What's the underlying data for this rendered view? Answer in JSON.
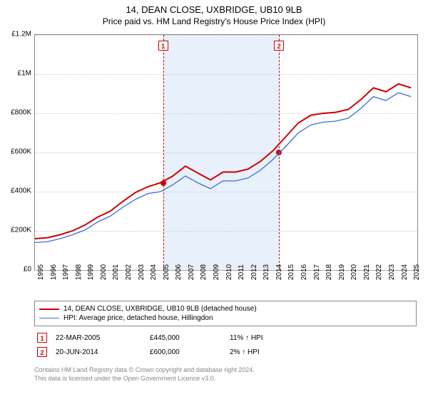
{
  "title": "14, DEAN CLOSE, UXBRIDGE, UB10 9LB",
  "subtitle": "Price paid vs. HM Land Registry's House Price Index (HPI)",
  "chart": {
    "type": "line",
    "x_min": 1995,
    "x_max": 2025.5,
    "y_min": 0,
    "y_max": 1200000,
    "y_ticks": [
      0,
      200000,
      400000,
      600000,
      800000,
      1000000,
      1200000
    ],
    "y_tick_labels": [
      "£0",
      "£200K",
      "£400K",
      "£600K",
      "£800K",
      "£1M",
      "£1.2M"
    ],
    "x_ticks": [
      1995,
      1996,
      1997,
      1998,
      1999,
      2000,
      2001,
      2002,
      2003,
      2004,
      2005,
      2006,
      2007,
      2008,
      2009,
      2010,
      2011,
      2012,
      2013,
      2014,
      2015,
      2016,
      2017,
      2018,
      2019,
      2020,
      2021,
      2022,
      2023,
      2024,
      2025
    ],
    "background_color": "#ffffff",
    "grid_color": "#cccccc",
    "shaded_band": {
      "x_start": 2005.22,
      "x_end": 2014.47,
      "color": "#e8f0fb"
    },
    "markers": [
      {
        "label": "1",
        "x": 2005.22,
        "point_y": 445000
      },
      {
        "label": "2",
        "x": 2014.47,
        "point_y": 600000
      }
    ],
    "series": [
      {
        "name": "property",
        "label": "14, DEAN CLOSE, UXBRIDGE, UB10 9LB (detached house)",
        "color": "#d00000",
        "width": 2,
        "points": [
          [
            1995,
            160000
          ],
          [
            1996,
            165000
          ],
          [
            1997,
            180000
          ],
          [
            1998,
            200000
          ],
          [
            1999,
            230000
          ],
          [
            2000,
            270000
          ],
          [
            2001,
            300000
          ],
          [
            2002,
            350000
          ],
          [
            2003,
            395000
          ],
          [
            2004,
            425000
          ],
          [
            2005,
            445000
          ],
          [
            2006,
            480000
          ],
          [
            2007,
            530000
          ],
          [
            2008,
            495000
          ],
          [
            2009,
            460000
          ],
          [
            2010,
            500000
          ],
          [
            2011,
            500000
          ],
          [
            2012,
            515000
          ],
          [
            2013,
            555000
          ],
          [
            2014,
            610000
          ],
          [
            2015,
            680000
          ],
          [
            2016,
            750000
          ],
          [
            2017,
            790000
          ],
          [
            2018,
            800000
          ],
          [
            2019,
            805000
          ],
          [
            2020,
            820000
          ],
          [
            2021,
            870000
          ],
          [
            2022,
            930000
          ],
          [
            2023,
            910000
          ],
          [
            2024,
            950000
          ],
          [
            2025,
            930000
          ]
        ]
      },
      {
        "name": "hpi",
        "label": "HPI: Average price, detached house, Hillingdon",
        "color": "#3a6fd8",
        "width": 1.3,
        "points": [
          [
            1995,
            140000
          ],
          [
            1996,
            145000
          ],
          [
            1997,
            160000
          ],
          [
            1998,
            180000
          ],
          [
            1999,
            205000
          ],
          [
            2000,
            245000
          ],
          [
            2001,
            275000
          ],
          [
            2002,
            320000
          ],
          [
            2003,
            360000
          ],
          [
            2004,
            390000
          ],
          [
            2005,
            400000
          ],
          [
            2006,
            435000
          ],
          [
            2007,
            480000
          ],
          [
            2008,
            445000
          ],
          [
            2009,
            415000
          ],
          [
            2010,
            455000
          ],
          [
            2011,
            455000
          ],
          [
            2012,
            470000
          ],
          [
            2013,
            510000
          ],
          [
            2014,
            565000
          ],
          [
            2015,
            630000
          ],
          [
            2016,
            700000
          ],
          [
            2017,
            740000
          ],
          [
            2018,
            755000
          ],
          [
            2019,
            760000
          ],
          [
            2020,
            775000
          ],
          [
            2021,
            825000
          ],
          [
            2022,
            885000
          ],
          [
            2023,
            865000
          ],
          [
            2024,
            905000
          ],
          [
            2025,
            885000
          ]
        ]
      }
    ]
  },
  "transactions": [
    {
      "marker": "1",
      "date": "22-MAR-2005",
      "price": "£445,000",
      "hpi": "11% ↑ HPI"
    },
    {
      "marker": "2",
      "date": "20-JUN-2014",
      "price": "£600,000",
      "hpi": "2% ↑ HPI"
    }
  ],
  "footer_line1": "Contains HM Land Registry data © Crown copyright and database right 2024.",
  "footer_line2": "This data is licensed under the Open Government Licence v3.0."
}
